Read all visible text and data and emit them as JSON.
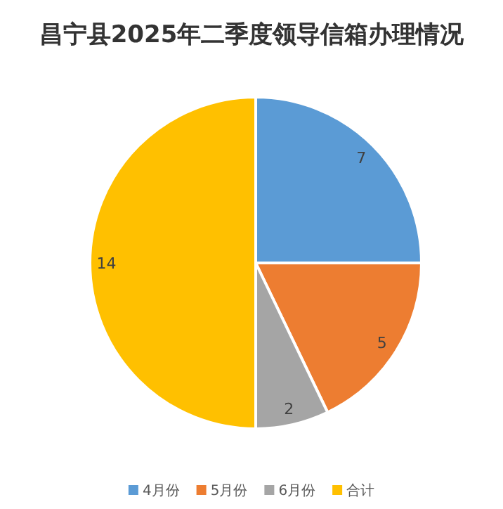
{
  "chart_data": {
    "type": "pie",
    "title": "昌宁县2025年二季度领导信箱办理情况",
    "categories": [
      "4月份",
      "5月份",
      "6月份",
      "合计"
    ],
    "values": [
      7,
      5,
      2,
      14
    ],
    "colors": [
      "#5b9bd5",
      "#ed7d31",
      "#a5a5a5",
      "#ffc000"
    ],
    "data_labels": true,
    "legend": "bottom"
  }
}
